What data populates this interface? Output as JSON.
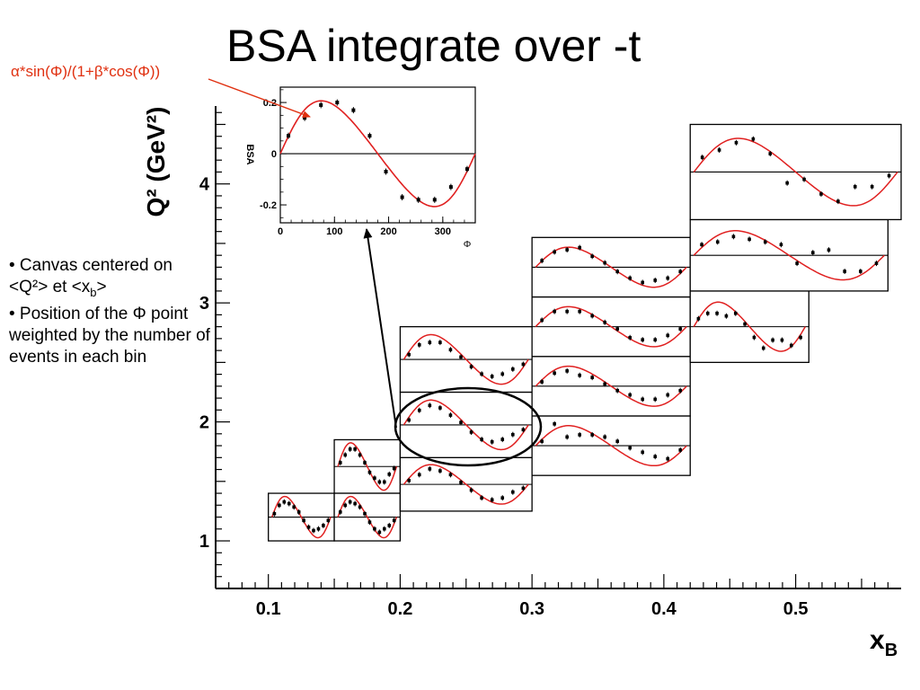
{
  "slide": {
    "title": "BSA integrate over -t",
    "formula": "α*sin(Φ)/(1+β*cos(Φ))",
    "notes": [
      "• Canvas centered on <Q²> et <x",
      "• Position of the Φ point weighted by the number of events in each bin"
    ],
    "notes_sub": "b",
    "notes_tail": ">"
  },
  "colors": {
    "fit": "#e02020",
    "formula_text": "#e03010",
    "axis": "#000000",
    "marker": "#000000"
  },
  "chart_data": [
    {
      "type": "scatter",
      "title": "",
      "xlabel": "x",
      "xlabel_sub": "B",
      "ylabel": "Q² (GeV²)",
      "xlim": [
        0.06,
        0.58
      ],
      "ylim": [
        0.6,
        4.7
      ],
      "x_ticks": [
        0.1,
        0.2,
        0.3,
        0.4,
        0.5
      ],
      "x_tick_labels": [
        "0.1",
        "0.2",
        "0.3",
        "0.4",
        "0.5"
      ],
      "y_ticks": [
        1,
        2,
        3,
        4
      ],
      "y_tick_labels": [
        "1",
        "2",
        "3",
        "4"
      ],
      "grid": false,
      "note": "Each (x_B, Q²) bin is drawn as a small BSA vs Φ panel centered on the bin",
      "panels": [
        {
          "xB": [
            0.1,
            0.15
          ],
          "Q2": [
            1.0,
            1.4
          ],
          "alpha": 0.12,
          "beta": -0.2,
          "points": [
            [
              15,
              0.02
            ],
            [
              45,
              0.07
            ],
            [
              75,
              0.09
            ],
            [
              105,
              0.08
            ],
            [
              135,
              0.06
            ],
            [
              165,
              0.03
            ],
            [
              195,
              -0.02
            ],
            [
              225,
              -0.06
            ],
            [
              255,
              -0.08
            ],
            [
              285,
              -0.07
            ],
            [
              315,
              -0.05
            ],
            [
              345,
              -0.02
            ]
          ]
        },
        {
          "xB": [
            0.15,
            0.2
          ],
          "Q2": [
            1.4,
            1.85
          ],
          "alpha": 0.12,
          "beta": -0.2,
          "points": [
            [
              15,
              0.02
            ],
            [
              45,
              0.06
            ],
            [
              75,
              0.09
            ],
            [
              105,
              0.09
            ],
            [
              135,
              0.06
            ],
            [
              165,
              0.02
            ],
            [
              195,
              -0.03
            ],
            [
              225,
              -0.06
            ],
            [
              255,
              -0.08
            ],
            [
              285,
              -0.08
            ],
            [
              315,
              -0.04
            ],
            [
              345,
              -0.01
            ]
          ]
        },
        {
          "xB": [
            0.15,
            0.2
          ],
          "Q2": [
            1.0,
            1.4
          ],
          "alpha": 0.12,
          "beta": -0.2,
          "points": [
            [
              15,
              0.03
            ],
            [
              45,
              0.07
            ],
            [
              75,
              0.09
            ],
            [
              105,
              0.08
            ],
            [
              135,
              0.06
            ],
            [
              165,
              0.02
            ],
            [
              195,
              -0.03
            ],
            [
              225,
              -0.07
            ],
            [
              255,
              -0.09
            ],
            [
              285,
              -0.07
            ],
            [
              315,
              -0.05
            ],
            [
              345,
              -0.02
            ]
          ]
        },
        {
          "xB": [
            0.2,
            0.3
          ],
          "Q2": [
            1.25,
            1.7
          ],
          "alpha": 0.1,
          "beta": -0.2,
          "points": [
            [
              15,
              0.02
            ],
            [
              45,
              0.05
            ],
            [
              75,
              0.08
            ],
            [
              105,
              0.07
            ],
            [
              135,
              0.05
            ],
            [
              165,
              0.01
            ],
            [
              195,
              -0.03
            ],
            [
              225,
              -0.07
            ],
            [
              255,
              -0.08
            ],
            [
              285,
              -0.07
            ],
            [
              315,
              -0.04
            ],
            [
              345,
              -0.02
            ]
          ]
        },
        {
          "xB": [
            0.2,
            0.3
          ],
          "Q2": [
            1.7,
            2.25
          ],
          "alpha": 0.1,
          "beta": -0.2,
          "points": [
            [
              15,
              0.02
            ],
            [
              45,
              0.06
            ],
            [
              75,
              0.08
            ],
            [
              105,
              0.07
            ],
            [
              135,
              0.04
            ],
            [
              165,
              0.01
            ],
            [
              195,
              -0.03
            ],
            [
              225,
              -0.06
            ],
            [
              255,
              -0.07
            ],
            [
              285,
              -0.06
            ],
            [
              315,
              -0.04
            ],
            [
              345,
              -0.02
            ]
          ]
        },
        {
          "xB": [
            0.2,
            0.3
          ],
          "Q2": [
            2.25,
            2.8
          ],
          "alpha": 0.1,
          "beta": -0.2,
          "points": [
            [
              15,
              0.02
            ],
            [
              45,
              0.06
            ],
            [
              75,
              0.07
            ],
            [
              105,
              0.07
            ],
            [
              135,
              0.04
            ],
            [
              165,
              0.01
            ],
            [
              195,
              -0.03
            ],
            [
              225,
              -0.06
            ],
            [
              255,
              -0.07
            ],
            [
              285,
              -0.06
            ],
            [
              315,
              -0.04
            ],
            [
              345,
              -0.02
            ]
          ]
        },
        {
          "xB": [
            0.3,
            0.42
          ],
          "Q2": [
            1.55,
            2.05
          ],
          "alpha": 0.09,
          "beta": -0.2,
          "points": [
            [
              15,
              0.02
            ],
            [
              45,
              0.1
            ],
            [
              75,
              0.04
            ],
            [
              105,
              0.05
            ],
            [
              135,
              0.05
            ],
            [
              165,
              0.04
            ],
            [
              195,
              0.02
            ],
            [
              225,
              -0.01
            ],
            [
              255,
              -0.03
            ],
            [
              285,
              -0.05
            ],
            [
              315,
              -0.06
            ],
            [
              345,
              -0.02
            ]
          ]
        },
        {
          "xB": [
            0.3,
            0.42
          ],
          "Q2": [
            2.05,
            2.55
          ],
          "alpha": 0.09,
          "beta": -0.2,
          "points": [
            [
              15,
              0.02
            ],
            [
              45,
              0.06
            ],
            [
              75,
              0.07
            ],
            [
              105,
              0.05
            ],
            [
              135,
              0.04
            ],
            [
              165,
              0.01
            ],
            [
              195,
              -0.02
            ],
            [
              225,
              -0.04
            ],
            [
              255,
              -0.06
            ],
            [
              285,
              -0.06
            ],
            [
              315,
              -0.04
            ],
            [
              345,
              -0.02
            ]
          ]
        },
        {
          "xB": [
            0.3,
            0.42
          ],
          "Q2": [
            2.55,
            3.05
          ],
          "alpha": 0.09,
          "beta": -0.2,
          "points": [
            [
              15,
              0.03
            ],
            [
              45,
              0.07
            ],
            [
              75,
              0.07
            ],
            [
              105,
              0.07
            ],
            [
              135,
              0.05
            ],
            [
              165,
              0.02
            ],
            [
              195,
              -0.01
            ],
            [
              225,
              -0.05
            ],
            [
              255,
              -0.06
            ],
            [
              285,
              -0.06
            ],
            [
              315,
              -0.04
            ],
            [
              345,
              -0.01
            ]
          ]
        },
        {
          "xB": [
            0.3,
            0.42
          ],
          "Q2": [
            3.05,
            3.55
          ],
          "alpha": 0.09,
          "beta": -0.2,
          "points": [
            [
              15,
              0.03
            ],
            [
              45,
              0.07
            ],
            [
              75,
              0.08
            ],
            [
              105,
              0.09
            ],
            [
              135,
              0.05
            ],
            [
              165,
              0.02
            ],
            [
              195,
              -0.02
            ],
            [
              225,
              -0.05
            ],
            [
              255,
              -0.07
            ],
            [
              285,
              -0.06
            ],
            [
              315,
              -0.05
            ],
            [
              345,
              -0.02
            ]
          ]
        },
        {
          "xB": [
            0.42,
            0.51
          ],
          "Q2": [
            2.5,
            3.1
          ],
          "alpha": 0.09,
          "beta": -0.2,
          "points": [
            [
              15,
              0.03
            ],
            [
              45,
              0.05
            ],
            [
              75,
              0.05
            ],
            [
              105,
              0.04
            ],
            [
              135,
              0.05
            ],
            [
              165,
              0.01
            ],
            [
              195,
              -0.04
            ],
            [
              225,
              -0.08
            ],
            [
              255,
              -0.05
            ],
            [
              285,
              -0.05
            ],
            [
              315,
              -0.07
            ],
            [
              345,
              -0.04
            ]
          ]
        },
        {
          "xB": [
            0.42,
            0.57
          ],
          "Q2": [
            3.1,
            3.7
          ],
          "alpha": 0.09,
          "beta": -0.2,
          "points": [
            [
              15,
              0.04
            ],
            [
              45,
              0.05
            ],
            [
              75,
              0.07
            ],
            [
              105,
              0.06
            ],
            [
              135,
              0.05
            ],
            [
              165,
              0.04
            ],
            [
              195,
              -0.03
            ],
            [
              225,
              0.01
            ],
            [
              255,
              0.02
            ],
            [
              285,
              -0.06
            ],
            [
              315,
              -0.06
            ],
            [
              345,
              -0.03
            ]
          ]
        },
        {
          "xB": [
            0.42,
            0.58
          ],
          "Q2": [
            3.7,
            4.5
          ],
          "alpha": 0.09,
          "beta": -0.2,
          "points": [
            [
              15,
              0.04
            ],
            [
              45,
              0.06
            ],
            [
              75,
              0.08
            ],
            [
              105,
              0.09
            ],
            [
              135,
              0.05
            ],
            [
              165,
              -0.03
            ],
            [
              195,
              -0.02
            ],
            [
              225,
              -0.06
            ],
            [
              255,
              -0.08
            ],
            [
              285,
              -0.04
            ],
            [
              315,
              -0.04
            ],
            [
              345,
              -0.01
            ]
          ]
        }
      ]
    },
    {
      "type": "scatter",
      "title": "",
      "xlabel": "Φ",
      "ylabel": "BSA",
      "xlim": [
        0,
        360
      ],
      "ylim": [
        -0.27,
        0.26
      ],
      "x_ticks": [
        0,
        100,
        200,
        300
      ],
      "x_tick_labels": [
        "0",
        "100",
        "200",
        "300"
      ],
      "y_ticks": [
        -0.2,
        0,
        0.2
      ],
      "y_tick_labels": [
        "-0.2",
        "0",
        "0.2"
      ],
      "fit_label": "α*sin(Φ)/(1+β*cos(Φ))",
      "alpha": 0.2,
      "beta": -0.25,
      "points": [
        [
          15,
          0.07
        ],
        [
          45,
          0.14
        ],
        [
          75,
          0.19
        ],
        [
          105,
          0.2
        ],
        [
          135,
          0.17
        ],
        [
          165,
          0.07
        ],
        [
          195,
          -0.07
        ],
        [
          225,
          -0.17
        ],
        [
          255,
          -0.18
        ],
        [
          285,
          -0.18
        ],
        [
          315,
          -0.13
        ],
        [
          345,
          -0.06
        ]
      ]
    }
  ]
}
